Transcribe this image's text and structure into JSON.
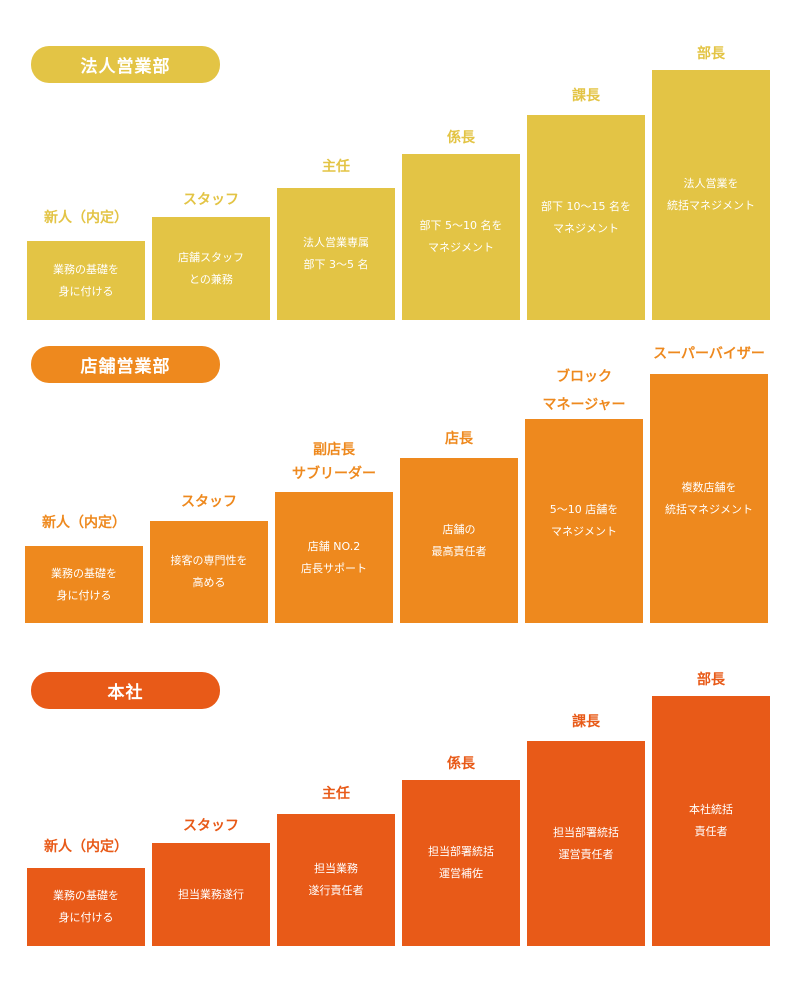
{
  "sections": [
    {
      "label": "法人営業部",
      "color": "#E3C445",
      "steps": [
        {
          "title": "新人（内定）",
          "desc": "業務の基礎を\n身に付ける"
        },
        {
          "title": "スタッフ",
          "desc": "店舗スタッフ\nとの兼務"
        },
        {
          "title": "主任",
          "desc": "法人営業専属\n部下 3～5 名"
        },
        {
          "title": "係長",
          "desc": "部下 5～10 名を\nマネジメント"
        },
        {
          "title": "課長",
          "desc": "部下 10～15 名を\nマネジメント"
        },
        {
          "title": "部長",
          "desc": "法人営業を\n統括マネジメント"
        }
      ]
    },
    {
      "label": "店舗営業部",
      "color": "#EE891E",
      "steps": [
        {
          "title": "新人（内定）",
          "desc": "業務の基礎を\n身に付ける"
        },
        {
          "title": "スタッフ",
          "desc": "接客の専門性を\n高める"
        },
        {
          "title": "副店長\nサブリーダー",
          "desc": "店舗 NO.2\n店長サポート"
        },
        {
          "title": "店長",
          "desc": "店舗の\n最高責任者"
        },
        {
          "title": "ブロック\nマネージャー",
          "desc": "5～10 店舗を\nマネジメント"
        },
        {
          "title": "スーパーバイザー",
          "desc": "複数店舗を\n統括マネジメント"
        }
      ]
    },
    {
      "label": "本社",
      "color": "#E85A18",
      "steps": [
        {
          "title": "新人（内定）",
          "desc": "業務の基礎を\n身に付ける"
        },
        {
          "title": "スタッフ",
          "desc": "担当業務遂行"
        },
        {
          "title": "主任",
          "desc": "担当業務\n遂行責任者"
        },
        {
          "title": "係長",
          "desc": "担当部署統括\n運営補佐"
        },
        {
          "title": "課長",
          "desc": "担当部署統括\n運営責任者"
        },
        {
          "title": "部長",
          "desc": "本社統括\n責任者"
        }
      ]
    }
  ]
}
